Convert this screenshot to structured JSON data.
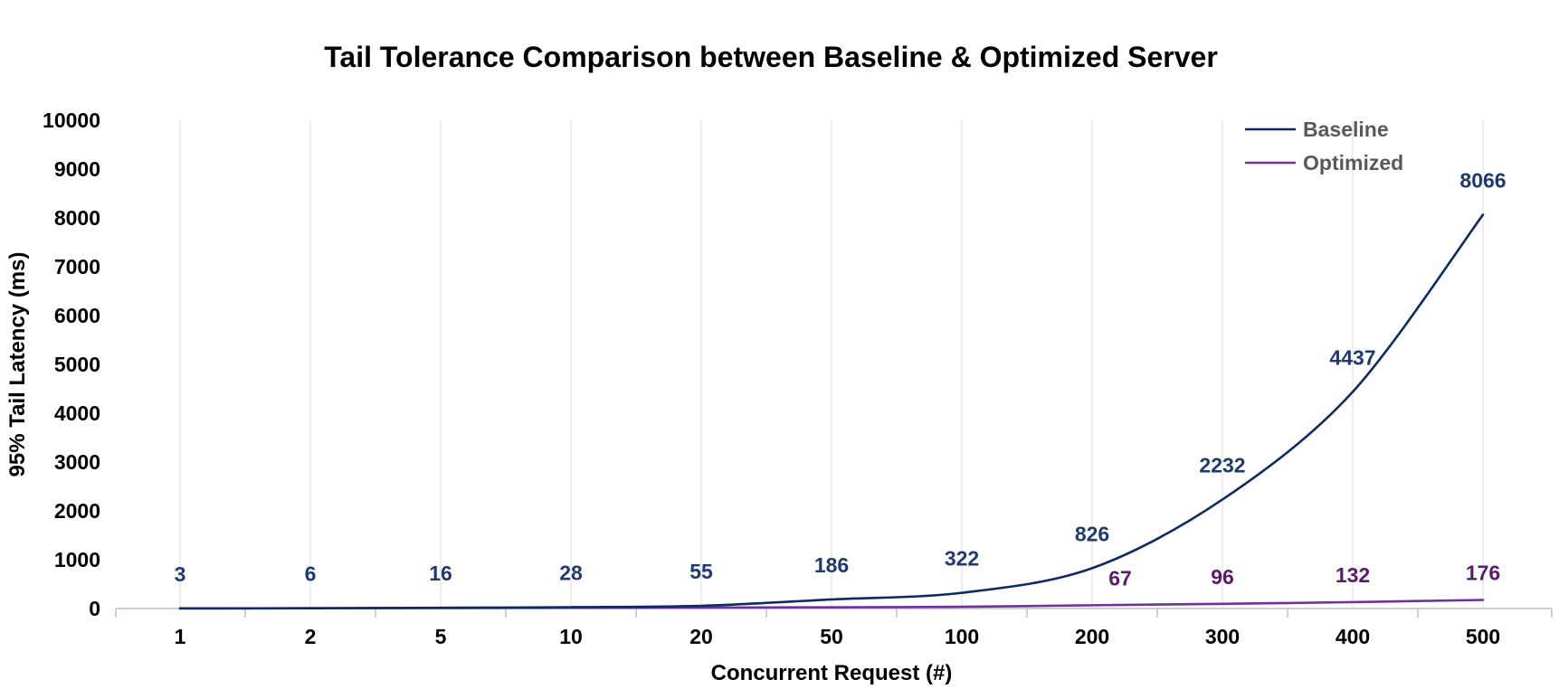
{
  "chart_data": {
    "type": "line",
    "title": "Tail Tolerance Comparison between Baseline & Optimized Server",
    "xlabel": "Concurrent Request (#)",
    "ylabel": "95% Tail Latency (ms)",
    "categories": [
      "1",
      "2",
      "5",
      "10",
      "20",
      "50",
      "100",
      "200",
      "300",
      "400",
      "500"
    ],
    "ylim": [
      0,
      10000
    ],
    "yticks": [
      0,
      1000,
      2000,
      3000,
      4000,
      5000,
      6000,
      7000,
      8000,
      9000,
      10000
    ],
    "grid": "vertical",
    "legend_position": "top-right",
    "series": [
      {
        "name": "Baseline",
        "color": "#0E2A63",
        "label_color": "#1F3A6E",
        "smooth": true,
        "values": [
          3,
          6,
          16,
          28,
          55,
          186,
          322,
          826,
          2232,
          4437,
          8066
        ]
      },
      {
        "name": "Optimized",
        "color": "#7030A0",
        "label_color": "#5B1A6B",
        "smooth": true,
        "values": [
          null,
          null,
          null,
          null,
          null,
          null,
          null,
          67,
          96,
          132,
          176
        ],
        "line_values": [
          3,
          6,
          10,
          15,
          20,
          25,
          35,
          67,
          96,
          132,
          176
        ]
      }
    ]
  }
}
